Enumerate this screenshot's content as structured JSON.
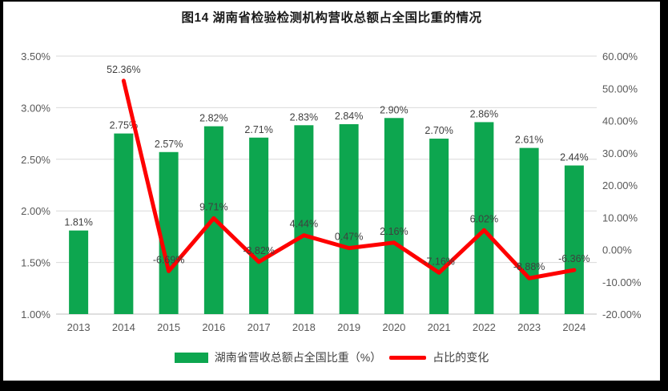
{
  "frame": {
    "title": "图14 湖南省检验检测机构营收总额占全国比重的情况"
  },
  "colors": {
    "bar": "#0da64f",
    "line": "#fe0000",
    "grid": "#d9d9d9",
    "axis_text": "#595959",
    "label_text": "#3f3f3f"
  },
  "legend": {
    "bar_label": "湖南省营收总额占全国比重（%）",
    "line_label": "占比的变化"
  },
  "chart_data": {
    "type": "combo-bar-line",
    "title": "图14 湖南省检验检测机构营收总额占全国比重的情况",
    "categories": [
      "2013",
      "2014",
      "2015",
      "2016",
      "2017",
      "2018",
      "2019",
      "2020",
      "2021",
      "2022",
      "2023",
      "2024"
    ],
    "series": [
      {
        "name": "湖南省营收总额占全国比重（%）",
        "type": "bar",
        "axis": "left",
        "color": "#0da64f",
        "values": [
          1.81,
          2.75,
          2.57,
          2.82,
          2.71,
          2.83,
          2.84,
          2.9,
          2.7,
          2.86,
          2.61,
          2.44
        ],
        "labels": [
          "1.81%",
          "2.75%",
          "2.57%",
          "2.82%",
          "2.71%",
          "2.83%",
          "2.84%",
          "2.90%",
          "2.70%",
          "2.86%",
          "2.61%",
          "2.44%"
        ]
      },
      {
        "name": "占比的变化",
        "type": "line",
        "axis": "right",
        "color": "#fe0000",
        "values": [
          null,
          52.36,
          -6.69,
          9.71,
          -3.82,
          4.44,
          0.47,
          2.16,
          -7.16,
          6.02,
          -8.88,
          -6.36
        ],
        "labels": [
          null,
          "52.36%",
          "-6.69%",
          "9.71%",
          "-3.82%",
          "4.44%",
          "0.47%",
          "2.16%",
          "-7.16%",
          "6.02%",
          "-8.88%",
          "-6.36%"
        ]
      }
    ],
    "left_axis": {
      "min": 1.0,
      "max": 3.5,
      "ticks": [
        "3.50%",
        "3.00%",
        "2.50%",
        "2.00%",
        "1.50%",
        "1.00%"
      ]
    },
    "right_axis": {
      "min": -20,
      "max": 60,
      "ticks": [
        "60.00%",
        "50.00%",
        "40.00%",
        "30.00%",
        "20.00%",
        "10.00%",
        "0.00%",
        "-10.00%",
        "-20.00%"
      ]
    },
    "grid": true,
    "legend_position": "bottom"
  }
}
